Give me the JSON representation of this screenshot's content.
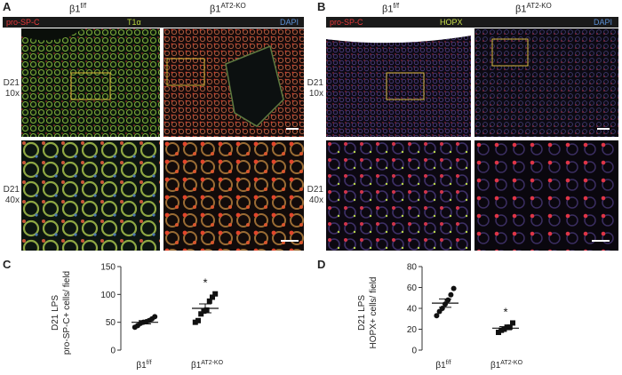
{
  "panel_a": {
    "letter": "A",
    "groups": [
      {
        "base": "β1",
        "sup": "f/f"
      },
      {
        "base": "β1",
        "sup": "AT2-KO"
      }
    ],
    "stains": [
      {
        "text": "pro-SP-C",
        "color": "#e8383a"
      },
      {
        "text": "T1α",
        "color": "#b6d33c"
      },
      {
        "text": "DAPI",
        "color": "#5b8fd6"
      }
    ],
    "rows": [
      {
        "line1": "D21",
        "line2": "10x"
      },
      {
        "line1": "D21",
        "line2": "40x"
      }
    ]
  },
  "panel_b": {
    "letter": "B",
    "groups": [
      {
        "base": "β1",
        "sup": "f/f"
      },
      {
        "base": "β1",
        "sup": "AT2-KO"
      }
    ],
    "stains": [
      {
        "text": "pro-SP-C",
        "color": "#e8383a"
      },
      {
        "text": "HOPX",
        "color": "#c9e04a"
      },
      {
        "text": "DAPI",
        "color": "#5b8fd6"
      }
    ],
    "rows": [
      {
        "line1": "D21",
        "line2": "10x"
      },
      {
        "line1": "D21",
        "line2": "40x"
      }
    ]
  },
  "panel_c": {
    "letter": "C"
  },
  "panel_d": {
    "letter": "D"
  },
  "chart_data": [
    {
      "type": "scatter",
      "ylabel_line1": "D21 LPS",
      "ylabel_line2": "pro-SP-C+ cells/ field",
      "ylim": [
        0,
        150
      ],
      "yticks": [
        0,
        50,
        100,
        150
      ],
      "categories": [
        {
          "base": "β1",
          "sup": "f/f"
        },
        {
          "base": "β1",
          "sup": "AT2-KO"
        }
      ],
      "groups": [
        {
          "marker": "circle",
          "values": [
            41,
            44,
            48,
            50,
            51,
            53,
            56,
            60
          ],
          "mean": 50,
          "sem": 3
        },
        {
          "marker": "square",
          "values": [
            50,
            53,
            65,
            70,
            72,
            88,
            95,
            101
          ],
          "mean": 75,
          "sem": 8
        }
      ],
      "annotation": "*"
    },
    {
      "type": "scatter",
      "ylabel_line1": "D21 LPS",
      "ylabel_line2": "HOPX+ cells/ field",
      "ylim": [
        0,
        80
      ],
      "yticks": [
        0,
        20,
        40,
        60,
        80
      ],
      "categories": [
        {
          "base": "β1",
          "sup": "f/f"
        },
        {
          "base": "β1",
          "sup": "AT2-KO"
        }
      ],
      "groups": [
        {
          "marker": "circle",
          "values": [
            33,
            37,
            40,
            44,
            48,
            53,
            59
          ],
          "mean": 45,
          "sem": 4
        },
        {
          "marker": "square",
          "values": [
            17,
            19,
            20,
            22,
            22,
            26
          ],
          "mean": 21,
          "sem": 1.5
        }
      ],
      "annotation": "*"
    }
  ]
}
